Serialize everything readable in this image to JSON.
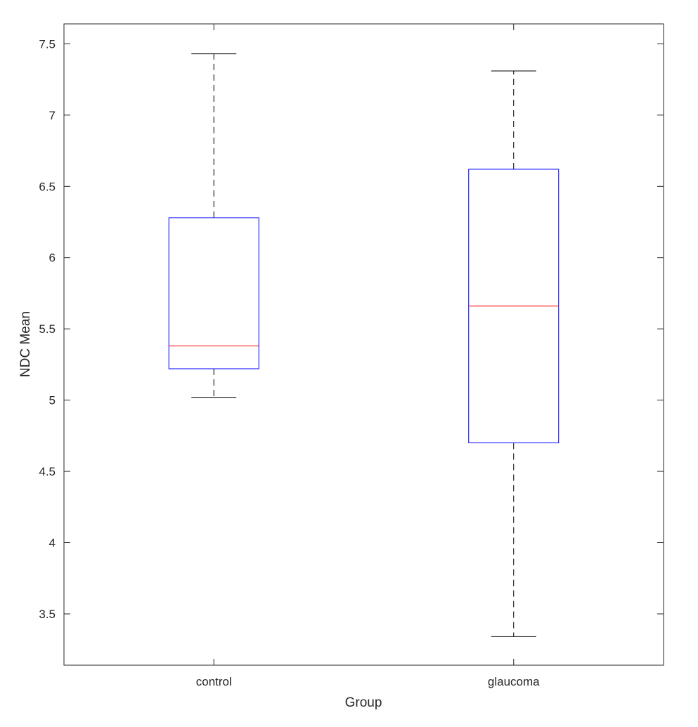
{
  "chart_data": {
    "type": "boxplot",
    "title": "",
    "xlabel": "Group",
    "ylabel": "NDC Mean",
    "ylim": [
      3.14,
      7.64
    ],
    "yticks": [
      "3.5",
      "4",
      "4.5",
      "5",
      "5.5",
      "6",
      "6.5",
      "7",
      "7.5"
    ],
    "categories": [
      "control",
      "glaucoma"
    ],
    "boxes": [
      {
        "category": "control",
        "whisker_low": 5.02,
        "q1": 5.22,
        "median": 5.38,
        "q3": 6.28,
        "whisker_high": 7.43
      },
      {
        "category": "glaucoma",
        "whisker_low": 3.34,
        "q1": 4.7,
        "median": 5.66,
        "q3": 6.62,
        "whisker_high": 7.31
      }
    ],
    "grid": false,
    "colors": {
      "box": "#0000ff",
      "median": "#ff0000",
      "whisker": "#000000",
      "axis": "#262626"
    }
  }
}
